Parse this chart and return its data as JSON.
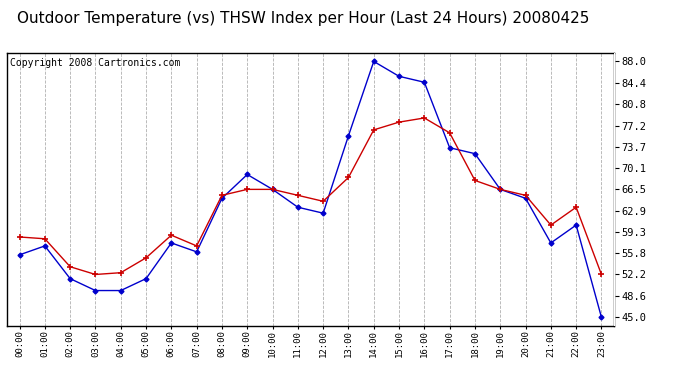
{
  "title": "Outdoor Temperature (vs) THSW Index per Hour (Last 24 Hours) 20080425",
  "copyright": "Copyright 2008 Cartronics.com",
  "hours": [
    "00:00",
    "01:00",
    "02:00",
    "03:00",
    "04:00",
    "05:00",
    "06:00",
    "07:00",
    "08:00",
    "09:00",
    "10:00",
    "11:00",
    "12:00",
    "13:00",
    "14:00",
    "15:00",
    "16:00",
    "17:00",
    "18:00",
    "19:00",
    "20:00",
    "21:00",
    "22:00",
    "23:00"
  ],
  "temp_red": [
    58.5,
    58.2,
    53.5,
    52.2,
    52.5,
    55.0,
    58.8,
    57.0,
    65.5,
    66.5,
    66.5,
    65.5,
    64.5,
    68.5,
    76.5,
    77.8,
    78.5,
    76.0,
    68.0,
    66.5,
    65.5,
    60.5,
    63.5,
    52.2
  ],
  "thsw_blue": [
    55.5,
    57.0,
    51.5,
    49.5,
    49.5,
    51.5,
    57.5,
    56.0,
    65.0,
    69.0,
    66.5,
    63.5,
    62.5,
    75.5,
    88.0,
    85.5,
    84.5,
    73.5,
    72.5,
    66.5,
    65.0,
    57.5,
    60.5,
    45.0
  ],
  "y_ticks": [
    45.0,
    48.6,
    52.2,
    55.8,
    59.3,
    62.9,
    66.5,
    70.1,
    73.7,
    77.2,
    80.8,
    84.4,
    88.0
  ],
  "ylim": [
    43.5,
    89.5
  ],
  "bg_color": "#ffffff",
  "plot_bg_color": "#ffffff",
  "grid_color": "#b0b0b0",
  "red_color": "#cc0000",
  "blue_color": "#0000cc",
  "title_fontsize": 11,
  "copyright_fontsize": 7
}
